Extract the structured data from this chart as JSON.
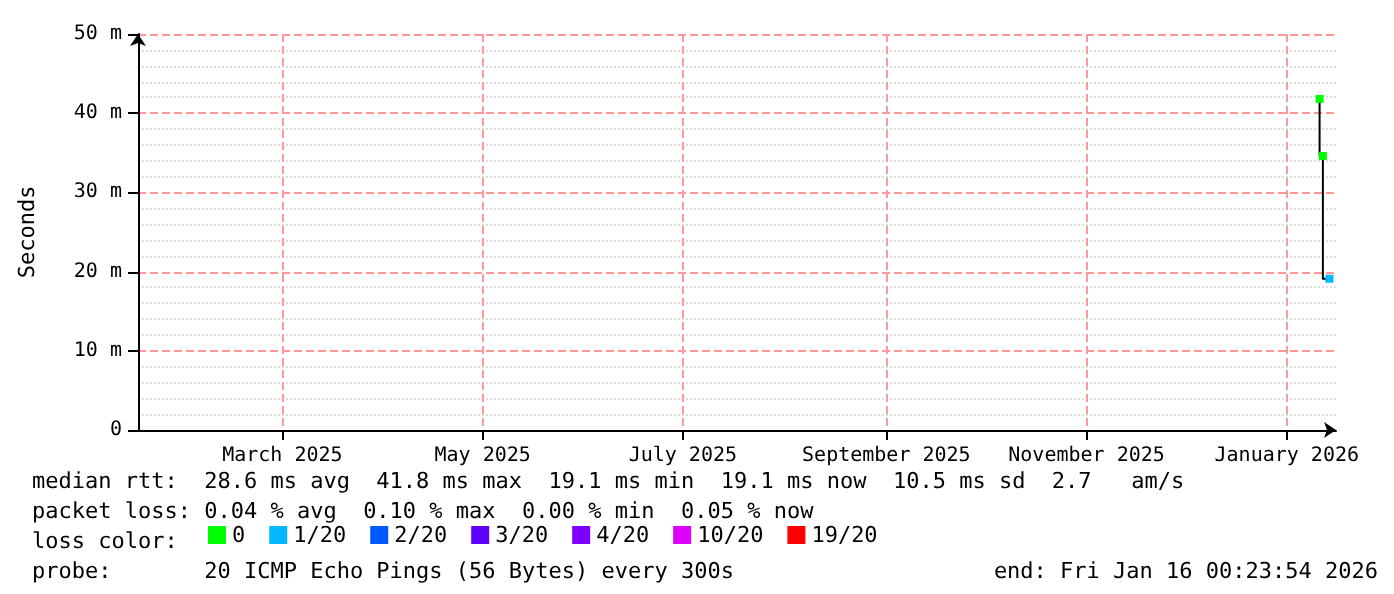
{
  "chart_data": {
    "type": "step",
    "ylabel": "Seconds",
    "x": [
      "2026-01-11",
      "2026-01-12",
      "2026-01-14"
    ],
    "series": [
      {
        "color": "#000000",
        "colors": [
          "#00ff00",
          "#00ff00",
          "#00b8ff"
        ],
        "values": [
          41.8,
          34.6,
          19.1
        ]
      },
      {
        "name": "0",
        "color": "#00ff00",
        "values": [
          null,
          null,
          null
        ]
      },
      {
        "name": "1/20",
        "color": "#00b8ff",
        "values": [
          null,
          null,
          null
        ]
      },
      {
        "name": "2/20",
        "color": "#0059ff",
        "values": [
          null,
          null,
          null
        ]
      },
      {
        "name": "3/20",
        "color": "#5e00ff",
        "values": [
          null,
          null,
          null
        ]
      },
      {
        "name": "4/20",
        "color": "#7e00ff",
        "values": [
          null,
          null,
          null
        ]
      },
      {
        "name": "10/20",
        "color": "#dd00ff",
        "values": [
          null,
          null,
          null
        ]
      },
      {
        "name": "19/20",
        "color": "#ff0000",
        "values": [
          null,
          null,
          null
        ]
      }
    ],
    "xlim": [
      "2025-01-16",
      "2026-01-16"
    ],
    "xticks": [
      {
        "value": "2025-03-01",
        "label": "March 2025"
      },
      {
        "value": "2025-05-01",
        "label": "May 2025"
      },
      {
        "value": "2025-07-01",
        "label": "July 2025"
      },
      {
        "value": "2025-09-01",
        "label": "September 2025"
      },
      {
        "value": "2025-11-01",
        "label": "November 2025"
      },
      {
        "value": "2026-01-01",
        "label": "January 2026"
      }
    ],
    "ylim": [
      0,
      50
    ],
    "yticks": [
      0,
      {
        "value": 10,
        "label": "10 m"
      },
      {
        "value": 20,
        "label": "20 m"
      },
      {
        "value": 30,
        "label": "30 m"
      },
      {
        "value": 40,
        "label": "40 m"
      },
      {
        "value": 50,
        "label": "50 m"
      }
    ],
    "grid": true,
    "legend": "bottom",
    "marker": "square",
    "line_style": "solid",
    "annotations": [
      "median rtt:  28.6 ms avg  41.8 ms max  19.1 ms min  19.1 ms now  10.5 ms sd  2.7   am/s",
      "packet loss: 0.04 % avg  0.10 % max  0.00 % min  0.05 % now",
      "loss color:",
      "probe:       20 ICMP Echo Pings (56 Bytes) every 300s",
      "end: Fri Jan 16 00:23:54 2026"
    ]
  }
}
